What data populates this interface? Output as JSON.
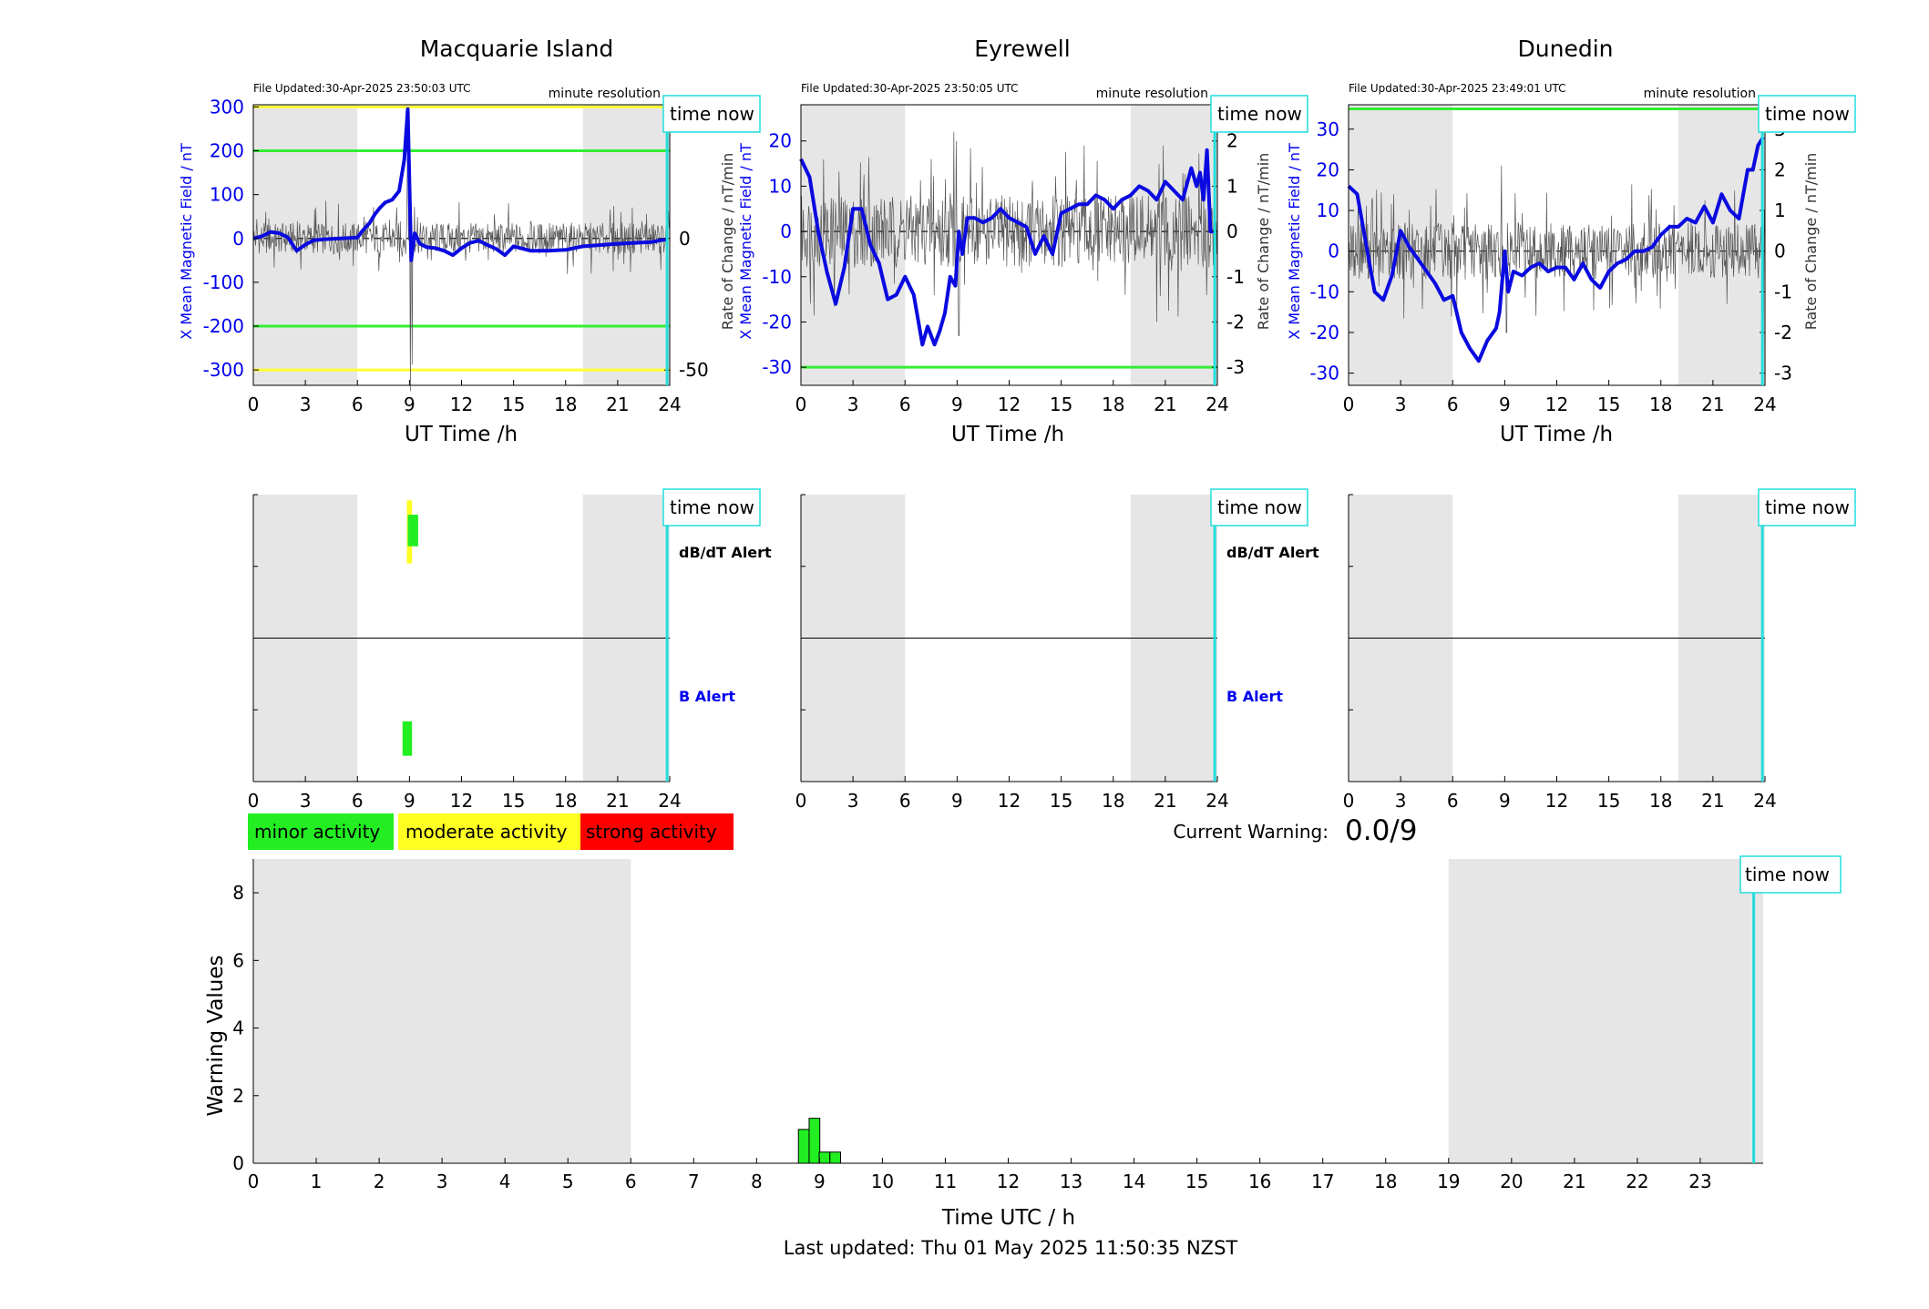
{
  "stations": [
    {
      "name": "Macquarie Island",
      "file_updated": "File Updated:30-Apr-2025 23:50:03 UTC",
      "resolution": "minute resolution",
      "xlabel": "UT Time /h",
      "ylabel_left": "X Mean Magnetic Field / nT",
      "ylabel_right": "",
      "ylim_left": [
        -335,
        305
      ],
      "ylim_right": [
        -55.8,
        50.8
      ],
      "yticks_left": [
        "-300",
        "-200",
        "-100",
        "0",
        "100",
        "200",
        "300"
      ],
      "yticks_right": [
        "-50",
        "0",
        "50"
      ],
      "threshold_lines": [
        {
          "value": 300,
          "color": "#ffff33"
        },
        {
          "value": 200,
          "color": "#33ee33"
        },
        {
          "value": -200,
          "color": "#33ee33"
        },
        {
          "value": -300,
          "color": "#ffff33"
        }
      ],
      "x_series": [
        [
          0,
          0
        ],
        [
          0.5,
          5
        ],
        [
          1,
          15
        ],
        [
          1.5,
          12
        ],
        [
          2,
          2
        ],
        [
          2.5,
          -28
        ],
        [
          3,
          -14
        ],
        [
          3.5,
          -4
        ],
        [
          4,
          -2
        ],
        [
          5,
          0
        ],
        [
          6,
          2
        ],
        [
          6.3,
          18
        ],
        [
          6.7,
          35
        ],
        [
          7,
          55
        ],
        [
          7.3,
          70
        ],
        [
          7.6,
          82
        ],
        [
          8,
          88
        ],
        [
          8.4,
          108
        ],
        [
          8.7,
          180
        ],
        [
          8.9,
          295
        ],
        [
          9.0,
          120
        ],
        [
          9.1,
          -50
        ],
        [
          9.3,
          12
        ],
        [
          9.6,
          -12
        ],
        [
          10,
          -20
        ],
        [
          10.5,
          -22
        ],
        [
          11,
          -28
        ],
        [
          11.5,
          -38
        ],
        [
          12,
          -22
        ],
        [
          12.5,
          -10
        ],
        [
          13,
          -5
        ],
        [
          13.5,
          -15
        ],
        [
          14,
          -24
        ],
        [
          14.5,
          -38
        ],
        [
          15,
          -18
        ],
        [
          16,
          -28
        ],
        [
          17,
          -28
        ],
        [
          18,
          -26
        ],
        [
          19,
          -18
        ],
        [
          20,
          -15
        ],
        [
          21,
          -12
        ],
        [
          22,
          -10
        ],
        [
          23,
          -8
        ],
        [
          23.5,
          -4
        ],
        [
          23.9,
          -2
        ]
      ],
      "rate_amplitude": 6,
      "rate_spikes": [
        [
          8.9,
          30
        ],
        [
          9.05,
          -58
        ],
        [
          9.15,
          -48
        ],
        [
          9.3,
          12
        ]
      ],
      "dbdt_alert": [
        {
          "x": 9.0,
          "level": "moderate",
          "x_from": 8.85,
          "x_to": 9.15,
          "bottom": 0.52,
          "top": 0.96
        },
        {
          "x": 9.1,
          "level": "minor",
          "x_from": 8.9,
          "x_to": 9.5,
          "bottom": 0.64,
          "top": 0.86
        }
      ],
      "b_alert": [
        {
          "x": 8.9,
          "level": "minor",
          "x_from": 8.6,
          "x_to": 9.15,
          "bottom": 0.18,
          "top": 0.42
        }
      ],
      "dbdt_label": "dB/dT Alert",
      "b_label": "B Alert"
    },
    {
      "name": "Eyrewell",
      "file_updated": "File Updated:30-Apr-2025 23:50:05 UTC",
      "resolution": "minute resolution",
      "xlabel": "UT Time /h",
      "ylabel_left": "X Mean Magnetic Field / nT",
      "ylabel_right": "Rate of Change / nT/min",
      "ylim_left": [
        -34,
        28
      ],
      "ylim_right": [
        -3.4,
        2.8
      ],
      "yticks_left": [
        "-30",
        "-20",
        "-10",
        "0",
        "10",
        "20"
      ],
      "yticks_right": [
        "-3",
        "-2",
        "-1",
        "0",
        "1",
        "2"
      ],
      "threshold_lines": [
        {
          "value": -30,
          "color": "#33ee33"
        }
      ],
      "x_series": [
        [
          0,
          16
        ],
        [
          0.5,
          12
        ],
        [
          1,
          0
        ],
        [
          1.5,
          -9
        ],
        [
          2,
          -16
        ],
        [
          2.5,
          -8
        ],
        [
          3,
          5
        ],
        [
          3.5,
          5
        ],
        [
          4,
          -3
        ],
        [
          4.5,
          -7
        ],
        [
          5,
          -15
        ],
        [
          5.5,
          -14
        ],
        [
          6,
          -10
        ],
        [
          6.5,
          -14
        ],
        [
          7,
          -25
        ],
        [
          7.3,
          -21
        ],
        [
          7.7,
          -25
        ],
        [
          8,
          -22
        ],
        [
          8.3,
          -18
        ],
        [
          8.6,
          -10
        ],
        [
          8.9,
          -12
        ],
        [
          9.1,
          0
        ],
        [
          9.3,
          -5
        ],
        [
          9.6,
          3
        ],
        [
          10,
          3
        ],
        [
          10.5,
          2
        ],
        [
          11,
          3
        ],
        [
          11.5,
          5
        ],
        [
          12,
          3
        ],
        [
          12.5,
          2
        ],
        [
          13,
          1
        ],
        [
          13.5,
          -5
        ],
        [
          14,
          -1
        ],
        [
          14.5,
          -5
        ],
        [
          15,
          4
        ],
        [
          15.5,
          5
        ],
        [
          16,
          6
        ],
        [
          16.5,
          6
        ],
        [
          17,
          8
        ],
        [
          17.5,
          7
        ],
        [
          18,
          5
        ],
        [
          18.5,
          7
        ],
        [
          19,
          8
        ],
        [
          19.5,
          10
        ],
        [
          20,
          9
        ],
        [
          20.5,
          7
        ],
        [
          21,
          11
        ],
        [
          21.5,
          9
        ],
        [
          22,
          7
        ],
        [
          22.5,
          14
        ],
        [
          22.8,
          10
        ],
        [
          23,
          13
        ],
        [
          23.2,
          7
        ],
        [
          23.4,
          18
        ],
        [
          23.6,
          0
        ],
        [
          23.9,
          0
        ]
      ],
      "rate_amplitude": 0.8,
      "rate_spikes": [
        [
          8.8,
          2.2
        ],
        [
          8.95,
          2.0
        ],
        [
          9.1,
          -2.3
        ],
        [
          7.5,
          1.6
        ],
        [
          20.5,
          -2.0
        ]
      ],
      "dbdt_alert": [],
      "b_alert": [],
      "dbdt_label": "dB/dT Alert",
      "b_label": "B Alert"
    },
    {
      "name": "Dunedin",
      "file_updated": "File Updated:30-Apr-2025 23:49:01 UTC",
      "resolution": "minute resolution",
      "xlabel": "UT Time /h",
      "ylabel_left": "X Mean Magnetic Field / nT",
      "ylabel_right": "Rate of Change / nT/min",
      "ylim_left": [
        -33,
        36
      ],
      "ylim_right": [
        -3.3,
        3.6
      ],
      "yticks_left": [
        "-30",
        "-20",
        "-10",
        "0",
        "10",
        "20",
        "30"
      ],
      "yticks_right": [
        "-3",
        "-2",
        "-1",
        "0",
        "1",
        "2",
        "3"
      ],
      "threshold_lines": [
        {
          "value": 35,
          "color": "#33ee33"
        }
      ],
      "x_series": [
        [
          0,
          16
        ],
        [
          0.5,
          14
        ],
        [
          1,
          2
        ],
        [
          1.5,
          -10
        ],
        [
          2,
          -12
        ],
        [
          2.5,
          -6
        ],
        [
          3,
          5
        ],
        [
          3.5,
          1
        ],
        [
          4,
          -2
        ],
        [
          4.5,
          -5
        ],
        [
          5,
          -8
        ],
        [
          5.5,
          -12
        ],
        [
          6,
          -11
        ],
        [
          6.5,
          -20
        ],
        [
          7,
          -24
        ],
        [
          7.5,
          -27
        ],
        [
          8,
          -22
        ],
        [
          8.5,
          -19
        ],
        [
          8.7,
          -15
        ],
        [
          9,
          0
        ],
        [
          9.2,
          -10
        ],
        [
          9.5,
          -5
        ],
        [
          10,
          -6
        ],
        [
          10.5,
          -4
        ],
        [
          11,
          -3
        ],
        [
          11.5,
          -5
        ],
        [
          12,
          -4
        ],
        [
          12.5,
          -4
        ],
        [
          13,
          -7
        ],
        [
          13.5,
          -3
        ],
        [
          14,
          -7
        ],
        [
          14.5,
          -9
        ],
        [
          15,
          -5
        ],
        [
          15.5,
          -3
        ],
        [
          16,
          -2
        ],
        [
          16.5,
          0
        ],
        [
          17,
          0
        ],
        [
          17.5,
          1
        ],
        [
          18,
          4
        ],
        [
          18.5,
          6
        ],
        [
          19,
          6
        ],
        [
          19.5,
          8
        ],
        [
          20,
          7
        ],
        [
          20.5,
          11
        ],
        [
          21,
          7
        ],
        [
          21.5,
          14
        ],
        [
          22,
          10
        ],
        [
          22.5,
          8
        ],
        [
          23,
          20
        ],
        [
          23.3,
          20
        ],
        [
          23.6,
          26
        ],
        [
          23.9,
          28
        ]
      ],
      "rate_amplitude": 0.7,
      "rate_spikes": [
        [
          8.8,
          2.1
        ],
        [
          9.1,
          -2.0
        ],
        [
          2.6,
          1.4
        ],
        [
          23.9,
          -3.0
        ]
      ],
      "dbdt_alert": [],
      "b_alert": [],
      "dbdt_label": "",
      "b_label": ""
    }
  ],
  "time_now_label": "time now",
  "time_now_hour": 23.85,
  "night_shading": [
    [
      0,
      6
    ],
    [
      19,
      24
    ]
  ],
  "station_xticks": [
    "0",
    "3",
    "6",
    "9",
    "12",
    "15",
    "18",
    "21",
    "24"
  ],
  "legend": [
    {
      "label": "minor activity",
      "color": "#22ee22"
    },
    {
      "label": "moderate activity",
      "color": "#ffff22"
    },
    {
      "label": "strong activity",
      "color": "#ff0000"
    }
  ],
  "current_warning_label": "Current Warning:",
  "current_warning_value": "0.0/9",
  "chart_data": {
    "type": "bar",
    "xlabel": "Time UTC / h",
    "ylabel": "Warning Values",
    "xlim": [
      0,
      24
    ],
    "ylim": [
      0,
      9
    ],
    "xticks": [
      "0",
      "1",
      "2",
      "3",
      "4",
      "5",
      "6",
      "7",
      "8",
      "9",
      "10",
      "11",
      "12",
      "13",
      "14",
      "15",
      "16",
      "17",
      "18",
      "19",
      "20",
      "21",
      "22",
      "23"
    ],
    "yticks": [
      "0",
      "2",
      "4",
      "6",
      "8"
    ],
    "x": [
      8.75,
      8.92,
      9.08,
      9.25
    ],
    "values": [
      1.0,
      1.33,
      0.33,
      0.33
    ],
    "bar_color": "#22ee22"
  },
  "footer": "Last updated: Thu 01 May 2025 11:50:35 NZST"
}
